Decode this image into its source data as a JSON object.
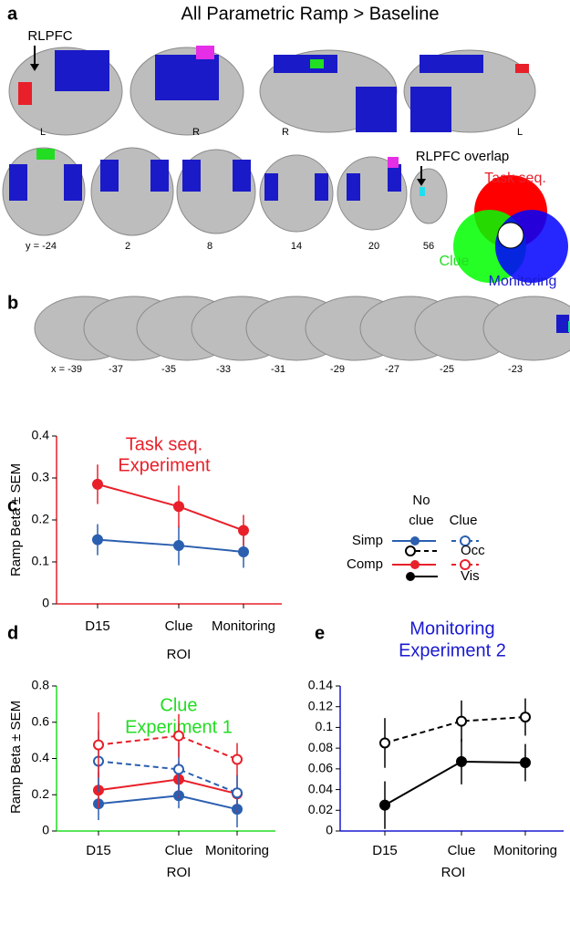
{
  "figure": {
    "a": {
      "label": "a",
      "title": "All Parametric Ramp > Baseline",
      "rlpfc": "RLPFC",
      "hemis": [
        "L",
        "R",
        "R",
        "L"
      ],
      "slices": [
        "y = -24",
        "2",
        "8",
        "14",
        "20",
        "56"
      ],
      "overlap": "RLPFC overlap",
      "venn": [
        "Task seq.",
        "Clue",
        "Monitoring"
      ]
    },
    "b": {
      "label": "b",
      "slices": [
        "x = -39",
        "-37",
        "-35",
        "-33",
        "-31",
        "-29",
        "-27",
        "-25",
        "-23"
      ]
    }
  },
  "legend": {
    "headers": [
      "No",
      "clue",
      "Clue"
    ],
    "rows": [
      "Simp",
      "Comp"
    ],
    "markers": [
      "Occ",
      "Vis"
    ]
  },
  "chart_data": [
    {
      "type": "line",
      "label": "c",
      "title": [
        "Task seq.",
        "Experiment"
      ],
      "title_color": "#e8202a",
      "axis_color": "#e8202a",
      "y_label": "Ramp Beta ± SEM",
      "x_label": "ROI",
      "categories": [
        "D15",
        "Clue",
        "Monitoring"
      ],
      "ylim": [
        0,
        0.4
      ],
      "yticks": [
        0,
        0.1,
        0.2,
        0.3,
        0.4
      ],
      "series": [
        {
          "name": "Simp",
          "color": "#2b5fb0",
          "values": [
            0.153,
            0.139,
            0.124
          ],
          "errors": [
            0.037,
            0.047,
            0.038
          ]
        },
        {
          "name": "Comp",
          "color": "#e8202a",
          "values": [
            0.285,
            0.232,
            0.175
          ],
          "errors": [
            0.047,
            0.05,
            0.037
          ]
        }
      ]
    },
    {
      "type": "line",
      "label": "d",
      "title": [
        "Clue",
        "Experiment 1"
      ],
      "title_color": "#22dd22",
      "axis_color": "#22dd22",
      "y_label": "Ramp Beta ± SEM",
      "x_label": "ROI",
      "categories": [
        "D15",
        "Clue",
        "Monitoring"
      ],
      "ylim": [
        0,
        0.8
      ],
      "yticks": [
        0,
        0.2,
        0.4,
        0.6,
        0.8
      ],
      "series": [
        {
          "name": "Simp",
          "color": "#2b5fb0",
          "values": [
            0.15,
            0.195,
            0.12
          ],
          "errors": [
            0.09,
            0.07,
            0.1
          ]
        },
        {
          "name": "Comp",
          "color": "#e8202a",
          "values": [
            0.225,
            0.285,
            0.205
          ],
          "errors": [
            0.1,
            0.1,
            0.1
          ]
        },
        {
          "name": "Simp",
          "color": "#2b5fb0",
          "dashed": true,
          "values": [
            0.385,
            0.34,
            0.21
          ],
          "errors": [
            0.17,
            0.15,
            0.1
          ]
        },
        {
          "name": "Comp",
          "color": "#e8202a",
          "dashed": true,
          "values": [
            0.475,
            0.525,
            0.395
          ],
          "errors": [
            0.18,
            0.12,
            0.09
          ]
        }
      ]
    },
    {
      "type": "line",
      "label": "e",
      "title": [
        "Monitoring",
        "Experiment 2"
      ],
      "title_color": "#1a1ad0",
      "axis_color": "#1a1ad0",
      "x_label": "ROI",
      "categories": [
        "D15",
        "Clue",
        "Monitoring"
      ],
      "ylim": [
        0,
        0.14
      ],
      "yticks": [
        0,
        0.02,
        0.04,
        0.06,
        0.08,
        0.1,
        0.12,
        0.14
      ],
      "series": [
        {
          "name": "Occ",
          "color": "#000000",
          "dashed": true,
          "values": [
            0.085,
            0.106,
            0.11
          ],
          "errors": [
            0.024,
            0.02,
            0.018
          ]
        },
        {
          "name": "Vis",
          "color": "#000000",
          "values": [
            0.025,
            0.067,
            0.066
          ],
          "errors": [
            0.023,
            0.022,
            0.018
          ]
        }
      ]
    }
  ]
}
